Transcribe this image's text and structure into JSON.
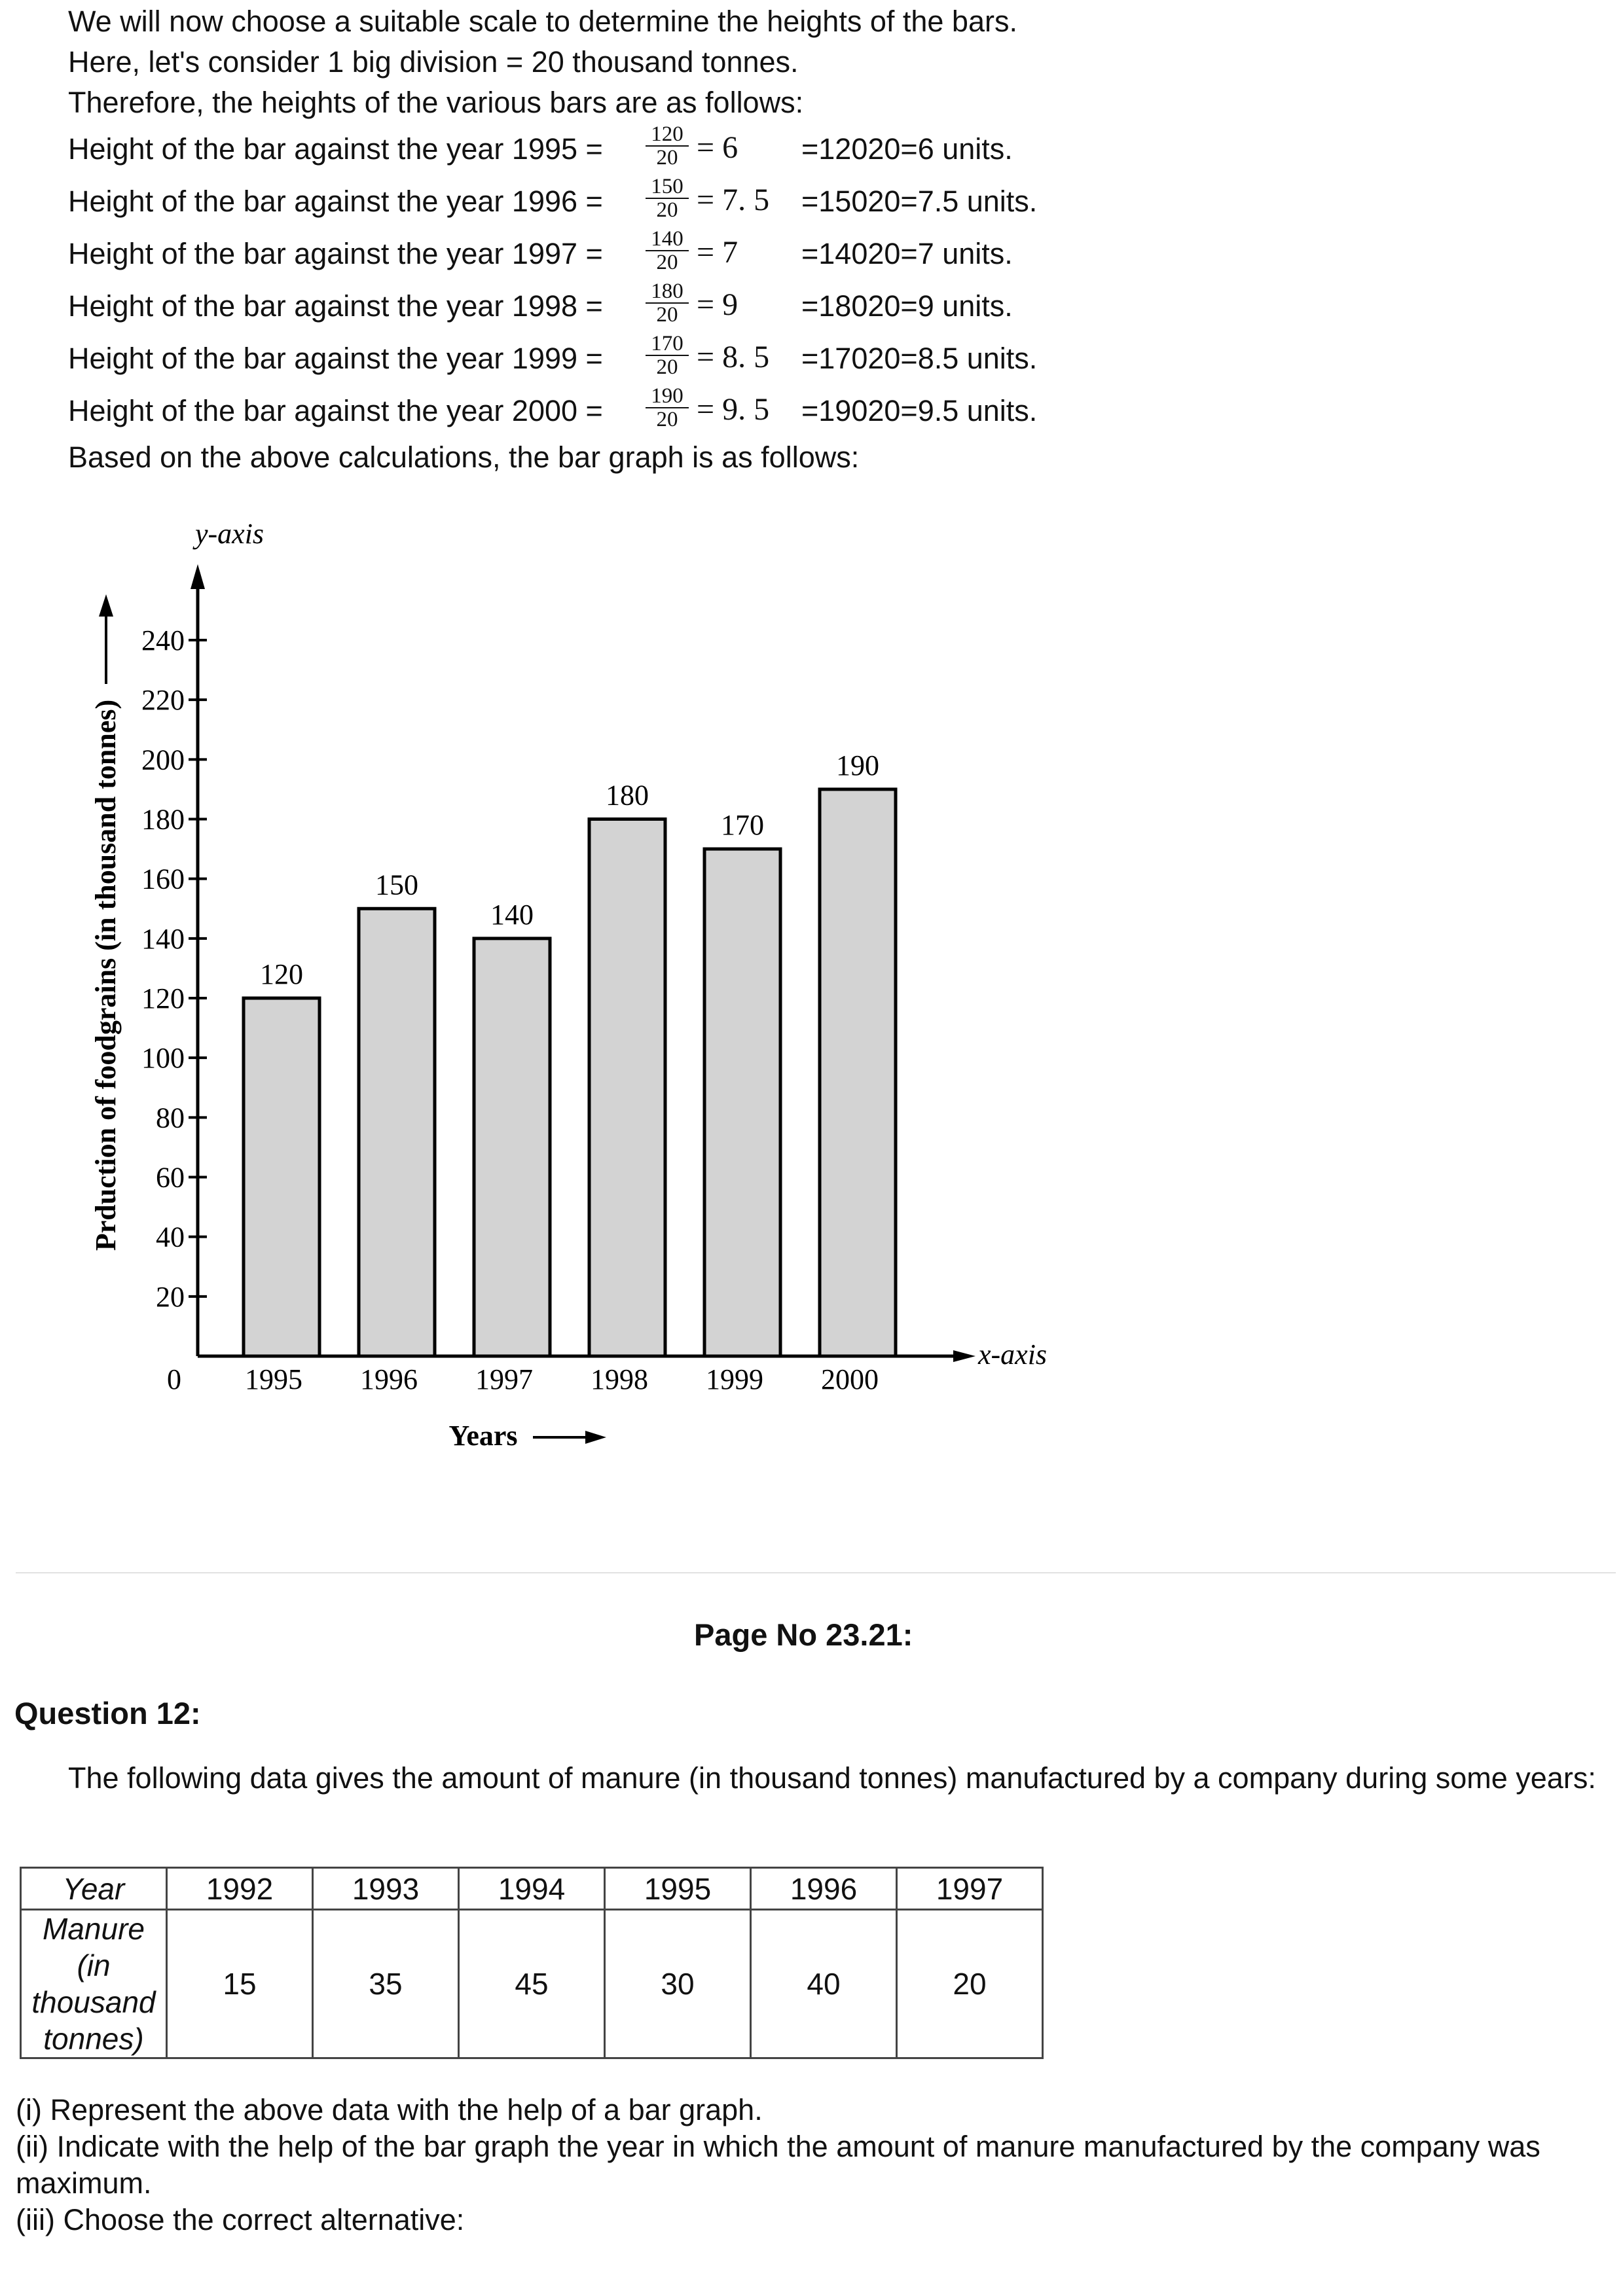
{
  "intro": {
    "line1": "We will now choose a suitable scale to determine the heights of the bars.",
    "line2": "Here, let's consider 1 big division = 20 thousand tonnes.",
    "line3": "Therefore, the heights of the various bars are as follows:"
  },
  "rows": [
    {
      "label": "Height of the bar against the year 1995 =",
      "num": "120",
      "den": "20",
      "result": "= 6",
      "alt": "=12020=6 units."
    },
    {
      "label": "Height of the bar against the year 1996 =",
      "num": "150",
      "den": "20",
      "result": "= 7. 5",
      "alt": "=15020=7.5 units."
    },
    {
      "label": "Height of the bar against the year 1997 =",
      "num": "140",
      "den": "20",
      "result": "= 7",
      "alt": "=14020=7 units."
    },
    {
      "label": "Height of the bar against the year 1998 =",
      "num": "180",
      "den": "20",
      "result": "= 9",
      "alt": "=18020=9 units."
    },
    {
      "label": "Height of the bar against the year 1999 =",
      "num": "170",
      "den": "20",
      "result": "= 8. 5",
      "alt": "=17020=8.5 units."
    },
    {
      "label": "Height of the bar against the year 2000 =",
      "num": "190",
      "den": "20",
      "result": "= 9. 5",
      "alt": "=19020=9.5 units."
    }
  ],
  "outro": "Based on the above calculations, the bar graph is as follows:",
  "chart_data": {
    "type": "bar",
    "categories": [
      "1995",
      "1996",
      "1997",
      "1998",
      "1999",
      "2000"
    ],
    "values": [
      120,
      150,
      140,
      180,
      170,
      190
    ],
    "value_labels": [
      "120",
      "150",
      "140",
      "180",
      "170",
      "190"
    ],
    "ylabel": "Prduction of foodgrains (in thousand tonnes)",
    "xlabel": "Years",
    "y_axis_name": "y-axis",
    "x_axis_name": "x-axis",
    "origin_label": "0",
    "yticks": [
      20,
      40,
      60,
      80,
      100,
      120,
      140,
      160,
      180,
      200,
      220,
      240
    ],
    "ylim": [
      0,
      240
    ],
    "bar_color": "#d3d3d3",
    "grid": false
  },
  "page_no": "Page No 23.21:",
  "question": {
    "title": "Question 12:",
    "text": "The following data gives the amount of manure (in thousand tonnes) manufactured by a company during some years:"
  },
  "table": {
    "row1_label": "Year",
    "row2_label_lines": [
      "Manure",
      "(in",
      "thousand",
      "tonnes)"
    ],
    "years": [
      "1992",
      "1993",
      "1994",
      "1995",
      "1996",
      "1997"
    ],
    "values": [
      "15",
      "35",
      "45",
      "30",
      "40",
      "20"
    ]
  },
  "parts": {
    "p1": "(i) Represent the above data with the help of a bar graph.",
    "p2": "(ii) Indicate with the help of the bar graph the year in which the amount of manure manufactured by the company was maximum.",
    "p3": "(iii) Choose the correct alternative:"
  }
}
